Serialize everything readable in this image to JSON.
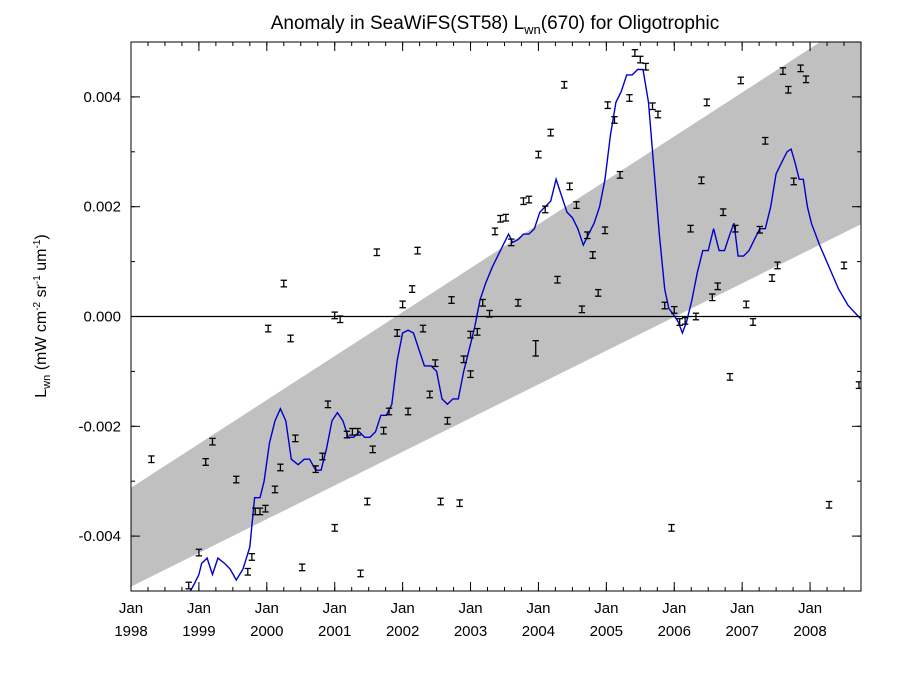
{
  "chart_data": {
    "type": "line",
    "title": {
      "main": "Anomaly in SeaWiFS(ST58) L",
      "sub": "wn",
      "rest": "(670) for Oligotrophic"
    },
    "ylabel": {
      "base": "L",
      "base_sub": "wn",
      "units_open": " (mW cm",
      "units_sup1": "-2",
      "units_mid1": " sr",
      "units_sup2": "-1",
      "units_mid2": " um",
      "units_sup3": "-1",
      "units_close": ")"
    },
    "xlim": [
      1998.0,
      2008.75
    ],
    "ylim": [
      -0.005,
      0.005
    ],
    "y_ticks": [
      -0.004,
      -0.002,
      0.0,
      0.002,
      0.004
    ],
    "y_tick_labels": [
      "-0.004",
      "-0.002",
      "0.000",
      "0.002",
      "0.004"
    ],
    "x_ticks": [
      1998,
      1999,
      2000,
      2001,
      2002,
      2003,
      2004,
      2005,
      2006,
      2007,
      2008
    ],
    "x_tick_labels": [
      [
        "Jan",
        "1998"
      ],
      [
        "Jan",
        "1999"
      ],
      [
        "Jan",
        "2000"
      ],
      [
        "Jan",
        "2001"
      ],
      [
        "Jan",
        "2002"
      ],
      [
        "Jan",
        "2003"
      ],
      [
        "Jan",
        "2004"
      ],
      [
        "Jan",
        "2005"
      ],
      [
        "Jan",
        "2006"
      ],
      [
        "Jan",
        "2007"
      ],
      [
        "Jan",
        "2008"
      ]
    ],
    "zero_line": 0.0,
    "confidence_band": {
      "color": "#c0c0c0",
      "upper": [
        [
          1998.0,
          -0.00312
        ],
        [
          2008.75,
          0.00548
        ]
      ],
      "lower": [
        [
          1998.0,
          -0.00492
        ],
        [
          2008.75,
          0.00168
        ]
      ]
    },
    "series": [
      {
        "type": "line",
        "color": "#0000cc",
        "points": [
          [
            1998.85,
            -0.00505
          ],
          [
            1998.92,
            -0.0049
          ],
          [
            1999.0,
            -0.0047
          ],
          [
            1999.04,
            -0.0045
          ],
          [
            1999.12,
            -0.0044
          ],
          [
            1999.2,
            -0.0047
          ],
          [
            1999.28,
            -0.0044
          ],
          [
            1999.38,
            -0.0045
          ],
          [
            1999.46,
            -0.0046
          ],
          [
            1999.55,
            -0.0048
          ],
          [
            1999.65,
            -0.0046
          ],
          [
            1999.75,
            -0.0042
          ],
          [
            1999.82,
            -0.0033
          ],
          [
            1999.9,
            -0.0033
          ],
          [
            1999.96,
            -0.003
          ],
          [
            2000.04,
            -0.0023
          ],
          [
            2000.12,
            -0.0019
          ],
          [
            2000.2,
            -0.00168
          ],
          [
            2000.28,
            -0.0019
          ],
          [
            2000.36,
            -0.0026
          ],
          [
            2000.46,
            -0.0027
          ],
          [
            2000.55,
            -0.0026
          ],
          [
            2000.63,
            -0.0026
          ],
          [
            2000.72,
            -0.0028
          ],
          [
            2000.8,
            -0.0028
          ],
          [
            2000.88,
            -0.0024
          ],
          [
            2000.96,
            -0.0019
          ],
          [
            2001.04,
            -0.00175
          ],
          [
            2001.12,
            -0.0019
          ],
          [
            2001.2,
            -0.0022
          ],
          [
            2001.28,
            -0.0022
          ],
          [
            2001.36,
            -0.0021
          ],
          [
            2001.44,
            -0.0022
          ],
          [
            2001.52,
            -0.0022
          ],
          [
            2001.6,
            -0.0021
          ],
          [
            2001.68,
            -0.0018
          ],
          [
            2001.76,
            -0.0018
          ],
          [
            2001.84,
            -0.0016
          ],
          [
            2001.92,
            -0.0008
          ],
          [
            2002.0,
            -0.0003
          ],
          [
            2002.08,
            -0.00025
          ],
          [
            2002.16,
            -0.0003
          ],
          [
            2002.24,
            -0.0006
          ],
          [
            2002.32,
            -0.0009
          ],
          [
            2002.42,
            -0.0009
          ],
          [
            2002.5,
            -0.001
          ],
          [
            2002.58,
            -0.0015
          ],
          [
            2002.66,
            -0.0016
          ],
          [
            2002.74,
            -0.0015
          ],
          [
            2002.82,
            -0.0015
          ],
          [
            2002.9,
            -0.001
          ],
          [
            2002.98,
            -0.0006
          ],
          [
            2003.06,
            -0.0002
          ],
          [
            2003.14,
            0.0003
          ],
          [
            2003.22,
            0.0006
          ],
          [
            2003.32,
            0.0009
          ],
          [
            2003.4,
            0.0011
          ],
          [
            2003.48,
            0.0013
          ],
          [
            2003.56,
            0.0015
          ],
          [
            2003.62,
            0.00135
          ],
          [
            2003.7,
            0.0014
          ],
          [
            2003.78,
            0.0015
          ],
          [
            2003.86,
            0.0015
          ],
          [
            2003.94,
            0.0016
          ],
          [
            2004.02,
            0.0019
          ],
          [
            2004.1,
            0.002
          ],
          [
            2004.18,
            0.0021
          ],
          [
            2004.26,
            0.0025
          ],
          [
            2004.34,
            0.0022
          ],
          [
            2004.42,
            0.0019
          ],
          [
            2004.5,
            0.0018
          ],
          [
            2004.58,
            0.0016
          ],
          [
            2004.66,
            0.0013
          ],
          [
            2004.74,
            0.0015
          ],
          [
            2004.82,
            0.0017
          ],
          [
            2004.9,
            0.002
          ],
          [
            2004.98,
            0.0025
          ],
          [
            2005.06,
            0.0033
          ],
          [
            2005.14,
            0.0039
          ],
          [
            2005.22,
            0.0041
          ],
          [
            2005.3,
            0.0044
          ],
          [
            2005.38,
            0.0044
          ],
          [
            2005.46,
            0.0045
          ],
          [
            2005.54,
            0.0045
          ],
          [
            2005.62,
            0.0039
          ],
          [
            2005.7,
            0.0027
          ],
          [
            2005.78,
            0.0015
          ],
          [
            2005.86,
            0.0005
          ],
          [
            2005.92,
            0.00015
          ],
          [
            2005.98,
            5e-05
          ],
          [
            2006.06,
            -0.0001
          ],
          [
            2006.12,
            -0.0003
          ],
          [
            2006.18,
            -0.0001
          ],
          [
            2006.26,
            0.0003
          ],
          [
            2006.34,
            0.0008
          ],
          [
            2006.42,
            0.0012
          ],
          [
            2006.5,
            0.0012
          ],
          [
            2006.58,
            0.0016
          ],
          [
            2006.66,
            0.0012
          ],
          [
            2006.74,
            0.0012
          ],
          [
            2006.82,
            0.0015
          ],
          [
            2006.88,
            0.0017
          ],
          [
            2006.94,
            0.0011
          ],
          [
            2007.02,
            0.0011
          ],
          [
            2007.1,
            0.0012
          ],
          [
            2007.18,
            0.0014
          ],
          [
            2007.26,
            0.0016
          ],
          [
            2007.34,
            0.0016
          ],
          [
            2007.42,
            0.002
          ],
          [
            2007.5,
            0.0026
          ],
          [
            2007.58,
            0.0028
          ],
          [
            2007.66,
            0.003
          ],
          [
            2007.72,
            0.00305
          ],
          [
            2007.78,
            0.0028
          ],
          [
            2007.84,
            0.0025
          ],
          [
            2007.9,
            0.0025
          ],
          [
            2007.96,
            0.002
          ],
          [
            2008.02,
            0.0017
          ],
          [
            2008.14,
            0.0013
          ],
          [
            2008.28,
            0.0009
          ],
          [
            2008.42,
            0.0005
          ],
          [
            2008.56,
            0.0002
          ],
          [
            2008.75,
            -5e-05
          ]
        ]
      },
      {
        "type": "errorbar",
        "color": "#000000",
        "points": [
          [
            1998.3,
            -0.0026,
            6e-05
          ],
          [
            1998.85,
            -0.0049,
            6e-05
          ],
          [
            1999.0,
            -0.0043,
            6e-05
          ],
          [
            1999.1,
            -0.00265,
            6e-05
          ],
          [
            1999.2,
            -0.00228,
            6e-05
          ],
          [
            1999.55,
            -0.00297,
            6e-05
          ],
          [
            1999.72,
            -0.00465,
            6e-05
          ],
          [
            1999.78,
            -0.00438,
            6e-05
          ],
          [
            1999.83,
            -0.00355,
            6e-05
          ],
          [
            1999.9,
            -0.00355,
            6e-05
          ],
          [
            1999.98,
            -0.0035,
            6e-05
          ],
          [
            2000.02,
            -0.00022,
            6e-05
          ],
          [
            2000.12,
            -0.00315,
            6e-05
          ],
          [
            2000.2,
            -0.00275,
            6e-05
          ],
          [
            2000.25,
            0.0006,
            6e-05
          ],
          [
            2000.35,
            -0.0004,
            6e-05
          ],
          [
            2000.42,
            -0.00222,
            6e-05
          ],
          [
            2000.52,
            -0.00457,
            6e-05
          ],
          [
            2000.72,
            -0.00278,
            6e-05
          ],
          [
            2000.82,
            -0.00255,
            6e-05
          ],
          [
            2000.9,
            -0.0016,
            6e-05
          ],
          [
            2001.0,
            2e-05,
            6e-05
          ],
          [
            2001.0,
            -0.00385,
            6e-05
          ],
          [
            2001.08,
            -5e-05,
            6e-05
          ],
          [
            2001.18,
            -0.00215,
            6e-05
          ],
          [
            2001.26,
            -0.0021,
            6e-05
          ],
          [
            2001.34,
            -0.0021,
            6e-05
          ],
          [
            2001.38,
            -0.00468,
            6e-05
          ],
          [
            2001.48,
            -0.00337,
            6e-05
          ],
          [
            2001.56,
            -0.00242,
            6e-05
          ],
          [
            2001.62,
            0.00117,
            6e-05
          ],
          [
            2001.72,
            -0.00208,
            6e-05
          ],
          [
            2001.8,
            -0.00173,
            6e-05
          ],
          [
            2001.92,
            -0.0003,
            6e-05
          ],
          [
            2002.0,
            0.00022,
            6e-05
          ],
          [
            2002.08,
            -0.00173,
            6e-05
          ],
          [
            2002.14,
            0.0005,
            6e-05
          ],
          [
            2002.22,
            0.0012,
            6e-05
          ],
          [
            2002.3,
            -0.00022,
            6e-05
          ],
          [
            2002.4,
            -0.00142,
            6e-05
          ],
          [
            2002.48,
            -0.00085,
            6e-05
          ],
          [
            2002.56,
            -0.00337,
            6e-05
          ],
          [
            2002.66,
            -0.0019,
            6e-05
          ],
          [
            2002.72,
            0.0003,
            6e-05
          ],
          [
            2002.84,
            -0.0034,
            6e-05
          ],
          [
            2002.9,
            -0.00078,
            6e-05
          ],
          [
            2003.0,
            -0.00105,
            6e-05
          ],
          [
            2003.0,
            -0.00033,
            6e-05
          ],
          [
            2003.1,
            -0.00028,
            6e-05
          ],
          [
            2003.18,
            0.00025,
            6e-05
          ],
          [
            2003.28,
            5e-05,
            6e-05
          ],
          [
            2003.36,
            0.00155,
            6e-05
          ],
          [
            2003.44,
            0.00178,
            6e-05
          ],
          [
            2003.52,
            0.0018,
            6e-05
          ],
          [
            2003.6,
            0.00135,
            6e-05
          ],
          [
            2003.7,
            0.00025,
            6e-05
          ],
          [
            2003.78,
            0.0021,
            6e-05
          ],
          [
            2003.86,
            0.00213,
            6e-05
          ],
          [
            2003.96,
            -0.00058,
            0.00014
          ],
          [
            2004.0,
            0.00295,
            6e-05
          ],
          [
            2004.1,
            0.00195,
            6e-05
          ],
          [
            2004.18,
            0.00335,
            6e-05
          ],
          [
            2004.28,
            0.00067,
            6e-05
          ],
          [
            2004.38,
            0.00422,
            6e-05
          ],
          [
            2004.46,
            0.00237,
            6e-05
          ],
          [
            2004.56,
            0.00203,
            6e-05
          ],
          [
            2004.64,
            0.00013,
            6e-05
          ],
          [
            2004.72,
            0.00148,
            6e-05
          ],
          [
            2004.8,
            0.00112,
            6e-05
          ],
          [
            2004.88,
            0.00043,
            6e-05
          ],
          [
            2004.98,
            0.00157,
            6e-05
          ],
          [
            2005.02,
            0.00385,
            6e-05
          ],
          [
            2005.12,
            0.00358,
            6e-05
          ],
          [
            2005.2,
            0.00258,
            6e-05
          ],
          [
            2005.34,
            0.00398,
            6e-05
          ],
          [
            2005.42,
            0.0048,
            6e-05
          ],
          [
            2005.5,
            0.00468,
            6e-05
          ],
          [
            2005.58,
            0.00455,
            6e-05
          ],
          [
            2005.68,
            0.00383,
            6e-05
          ],
          [
            2005.76,
            0.00368,
            6e-05
          ],
          [
            2005.86,
            0.0002,
            6e-05
          ],
          [
            2005.96,
            -0.00385,
            6e-05
          ],
          [
            2006.0,
            0.00012,
            6e-05
          ],
          [
            2006.08,
            -0.0001,
            6e-05
          ],
          [
            2006.16,
            -8e-05,
            6e-05
          ],
          [
            2006.24,
            0.0016,
            6e-05
          ],
          [
            2006.32,
            0.0,
            6e-05
          ],
          [
            2006.4,
            0.00248,
            6e-05
          ],
          [
            2006.48,
            0.0039,
            6e-05
          ],
          [
            2006.56,
            0.00035,
            6e-05
          ],
          [
            2006.64,
            0.00055,
            6e-05
          ],
          [
            2006.72,
            0.0019,
            6e-05
          ],
          [
            2006.82,
            -0.0011,
            6e-05
          ],
          [
            2006.9,
            0.0016,
            6e-05
          ],
          [
            2006.98,
            0.0043,
            6e-05
          ],
          [
            2007.06,
            0.00022,
            6e-05
          ],
          [
            2007.16,
            -0.0001,
            6e-05
          ],
          [
            2007.26,
            0.00158,
            6e-05
          ],
          [
            2007.34,
            0.0032,
            6e-05
          ],
          [
            2007.44,
            0.0007,
            6e-05
          ],
          [
            2007.52,
            0.00093,
            6e-05
          ],
          [
            2007.6,
            0.00447,
            6e-05
          ],
          [
            2007.68,
            0.00413,
            6e-05
          ],
          [
            2007.76,
            0.00246,
            6e-05
          ],
          [
            2007.86,
            0.00452,
            6e-05
          ],
          [
            2007.94,
            0.00432,
            6e-05
          ],
          [
            2008.28,
            -0.00343,
            6e-05
          ],
          [
            2008.5,
            0.00093,
            6e-05
          ],
          [
            2008.72,
            -0.00125,
            6e-05
          ]
        ]
      }
    ]
  }
}
